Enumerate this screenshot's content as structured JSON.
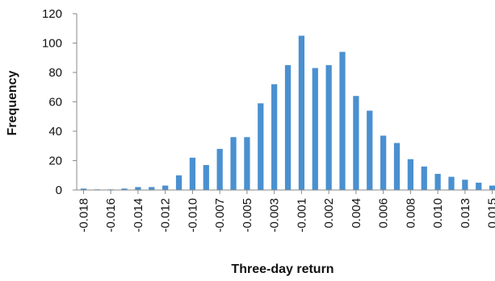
{
  "chart_data": {
    "type": "bar",
    "title": "",
    "xlabel": "Three-day return",
    "ylabel": "Frequency",
    "ylim": [
      0,
      120
    ],
    "y_ticks": [
      0,
      20,
      40,
      60,
      80,
      100,
      120
    ],
    "grid": false,
    "legend": "none",
    "bar_color": "#4a90d0",
    "categories": [
      "-0.018",
      "-0.017",
      "-0.016",
      "-0.015",
      "-0.014",
      "-0.013",
      "-0.012",
      "-0.011",
      "-0.010",
      "-0.008",
      "-0.007",
      "-0.006",
      "-0.005",
      "-0.004",
      "-0.003",
      "-0.002",
      "-0.001",
      "0.000",
      "0.002",
      "0.003",
      "0.004",
      "0.005",
      "0.006",
      "0.007",
      "0.008",
      "0.009",
      "0.010",
      "0.011",
      "0.013",
      "0.014",
      "0.015"
    ],
    "tick_labels_shown": [
      "-0.018",
      "-0.016",
      "-0.014",
      "-0.012",
      "-0.010",
      "-0.007",
      "-0.005",
      "-0.003",
      "-0.001",
      "0.002",
      "0.004",
      "0.006",
      "0.008",
      "0.010",
      "0.013",
      "0.015"
    ],
    "values": [
      1,
      0,
      0,
      1,
      2,
      2,
      3,
      10,
      22,
      17,
      28,
      36,
      36,
      59,
      72,
      85,
      105,
      83,
      85,
      94,
      64,
      54,
      37,
      32,
      21,
      16,
      11,
      9,
      7,
      5,
      3
    ]
  }
}
